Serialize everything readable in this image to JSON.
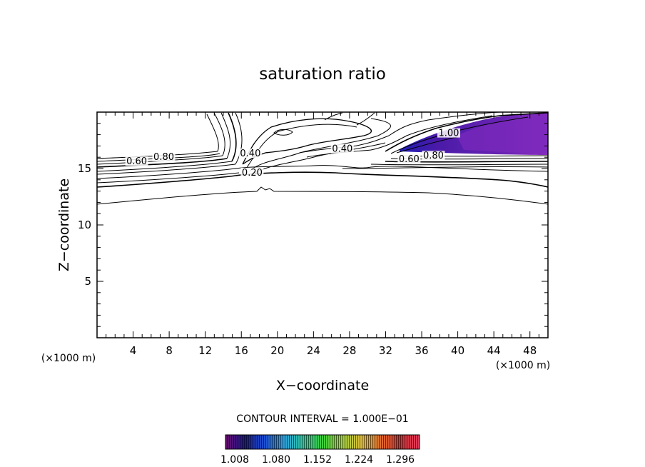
{
  "chart_data": {
    "type": "contour",
    "title": "saturation ratio",
    "xlabel": "X−coordinate",
    "ylabel": "Z−coordinate",
    "x_unit": "(×1000 m)",
    "y_unit": "(×1000 m)",
    "xlim": [
      0,
      50
    ],
    "ylim": [
      0,
      20
    ],
    "x_ticks": [
      4,
      8,
      12,
      16,
      20,
      24,
      28,
      32,
      36,
      40,
      44,
      48
    ],
    "y_ticks": [
      5,
      10,
      15
    ],
    "contour_interval_text": "CONTOUR INTERVAL = 1.000E−01",
    "contour_labels": [
      {
        "text": "0.60",
        "x": 4.4,
        "z": 15.5
      },
      {
        "text": "0.80",
        "x": 7.4,
        "z": 15.9
      },
      {
        "text": "0.40",
        "x": 17.0,
        "z": 16.2
      },
      {
        "text": "0.20",
        "x": 17.2,
        "z": 14.5
      },
      {
        "text": "0.40",
        "x": 27.2,
        "z": 16.6
      },
      {
        "text": "0.60",
        "x": 34.6,
        "z": 15.7
      },
      {
        "text": "0.80",
        "x": 37.3,
        "z": 16.0
      },
      {
        "text": "1.00",
        "x": 39.0,
        "z": 18.0
      }
    ],
    "colorbar": {
      "ticks": [
        "1.008",
        "1.080",
        "1.152",
        "1.224",
        "1.296"
      ],
      "colors": [
        "#6a0d6a",
        "#1a1a8c",
        "#1f4fd0",
        "#2fa0e0",
        "#30c8a0",
        "#40d040",
        "#a0d040",
        "#e0c040",
        "#e07030",
        "#d03030",
        "#e04060"
      ]
    }
  }
}
